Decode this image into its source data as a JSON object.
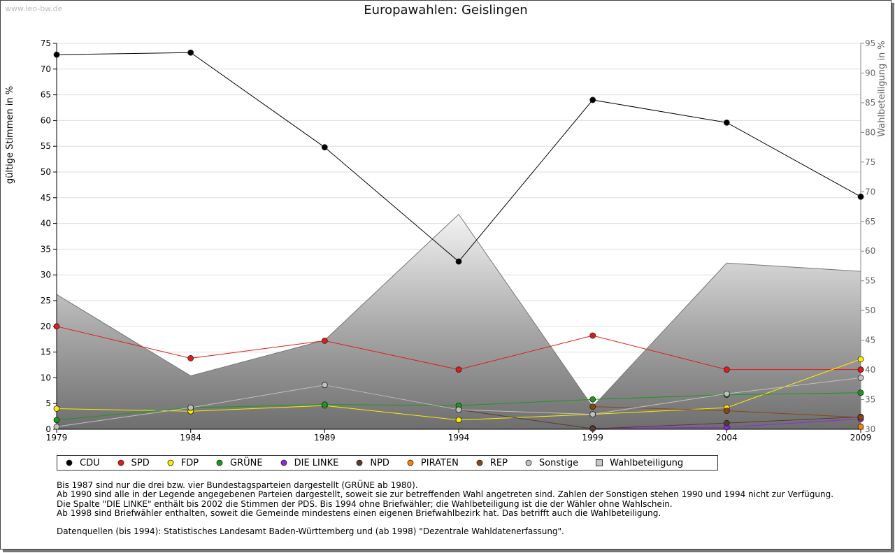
{
  "watermark": "www.leo-bw.de",
  "chart_data": {
    "type": "line",
    "title": "Europawahlen: Geislingen",
    "ylabel": "gültige Stimmen in %",
    "ylabel_right": "Wahlbeteiligung in %",
    "ylim": [
      0,
      75
    ],
    "ylim_right": [
      30,
      95
    ],
    "yticks": [
      0,
      5,
      10,
      15,
      20,
      25,
      30,
      35,
      40,
      45,
      50,
      55,
      60,
      65,
      70,
      75
    ],
    "yticks_right": [
      30,
      35,
      40,
      45,
      50,
      55,
      60,
      65,
      70,
      75,
      80,
      85,
      90,
      95
    ],
    "x": [
      "1979",
      "1984",
      "1989",
      "1994",
      "1999",
      "2004",
      "2009"
    ],
    "grid": true,
    "legend_position": "bottom",
    "series": [
      {
        "name": "CDU",
        "color": "#000000",
        "values": [
          72.8,
          73.2,
          54.8,
          32.6,
          64.0,
          59.6,
          45.2
        ]
      },
      {
        "name": "SPD",
        "color": "#e41a1c",
        "values": [
          20.0,
          13.8,
          17.2,
          11.6,
          18.2,
          11.6,
          11.6
        ]
      },
      {
        "name": "FDP",
        "color": "#ffeb00",
        "values": [
          4.0,
          3.5,
          4.6,
          1.8,
          2.9,
          4.2,
          13.6
        ]
      },
      {
        "name": "GRÜNE",
        "color": "#1a9a1a",
        "values": [
          1.8,
          4.2,
          4.8,
          4.6,
          5.8,
          6.7,
          7.1
        ]
      },
      {
        "name": "DIE LINKE",
        "color": "#8a2be2",
        "values": [
          null,
          null,
          null,
          null,
          0.2,
          0.4,
          2.0
        ]
      },
      {
        "name": "NPD",
        "color": "#5a3a2a",
        "values": [
          null,
          null,
          8.6,
          3.8,
          0.1,
          1.2,
          2.4
        ]
      },
      {
        "name": "PIRATEN",
        "color": "#ff8000",
        "values": [
          null,
          null,
          null,
          null,
          null,
          null,
          0.5
        ]
      },
      {
        "name": "REP",
        "color": "#8b4513",
        "values": [
          null,
          null,
          null,
          null,
          4.4,
          3.6,
          2.3
        ]
      },
      {
        "name": "Sonstige",
        "color": "#c0c0c0",
        "values": [
          0.5,
          4.2,
          8.6,
          3.8,
          2.9,
          6.9,
          10.0
        ]
      }
    ],
    "turnout": {
      "name": "Wahlbeteiligung",
      "values": [
        52.7,
        39.0,
        45.0,
        66.2,
        33.8,
        58.0,
        56.6
      ]
    }
  },
  "notes": [
    "Bis 1987 sind nur die drei bzw. vier Bundestagsparteien dargestellt (GRÜNE ab 1980).",
    "Ab 1990 sind alle in der Legende angegebenen Parteien dargestellt, soweit sie zur betreffenden Wahl angetreten sind. Zahlen der Sonstigen stehen 1990 und 1994 nicht zur Verfügung.",
    "Die Spalte \"DIE LINKE\" enthält bis 2002 die Stimmen der PDS. Bis 1994 ohne Briefwähler; die Wahlbeteiligung ist die der Wähler ohne Wahlschein.",
    "Ab 1998 sind Briefwähler enthalten, soweit die Gemeinde mindestens einen eigenen Briefwahlbezirk hat. Das betrifft auch die Wahlbeteiligung."
  ],
  "source": "Datenquellen (bis 1994): Statistisches Landesamt Baden-Württemberg und (ab 1998) \"Dezentrale Wahldatenerfassung\"."
}
